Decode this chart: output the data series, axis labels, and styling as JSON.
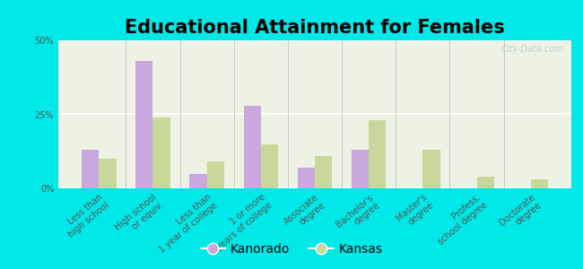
{
  "title": "Educational Attainment for Females",
  "categories": [
    "Less than\nhigh school",
    "High school\nor equiv.",
    "Less than\n1 year of college",
    "1 or more\nyears of college",
    "Associate\ndegree",
    "Bachelor's\ndegree",
    "Master's\ndegree",
    "Profess.\nschool degree",
    "Doctorate\ndegree"
  ],
  "kanorado": [
    13,
    43,
    5,
    28,
    7,
    13,
    0,
    0,
    0
  ],
  "kansas": [
    10,
    24,
    9,
    15,
    11,
    23,
    13,
    4,
    3
  ],
  "kanorado_color": "#c9a8e0",
  "kansas_color": "#c8d89a",
  "plot_bg": "#eef2e4",
  "outer_bg": "#00e8e8",
  "ylim": [
    0,
    50
  ],
  "yticks": [
    0,
    25,
    50
  ],
  "ytick_labels": [
    "0%",
    "25%",
    "50%"
  ],
  "legend_kanorado": "Kanorado",
  "legend_kansas": "Kansas",
  "title_fontsize": 15,
  "bar_width": 0.32
}
